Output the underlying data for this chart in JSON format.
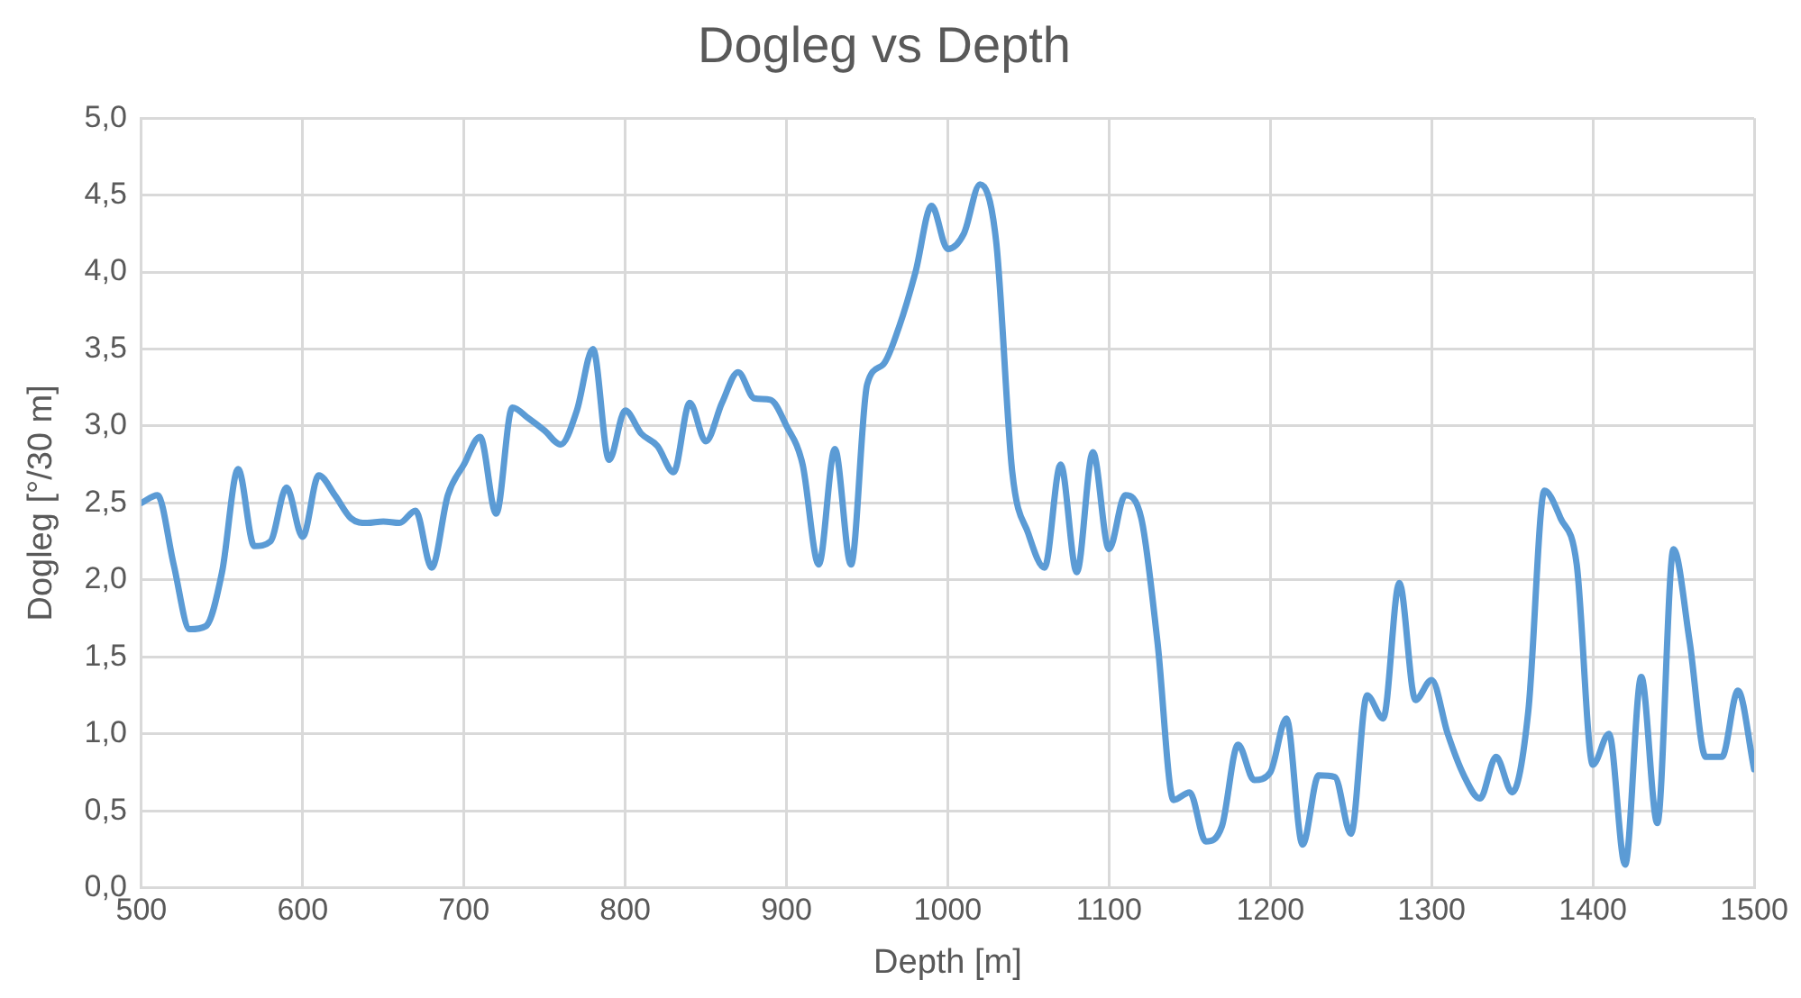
{
  "chart_data": {
    "type": "line",
    "title": "Dogleg vs Depth",
    "xlabel": "Depth [m]",
    "ylabel": "Dogleg [°/30 m]",
    "x": [
      500,
      510,
      520,
      530,
      540,
      550,
      560,
      570,
      580,
      590,
      600,
      610,
      620,
      630,
      640,
      650,
      660,
      670,
      680,
      690,
      700,
      710,
      720,
      730,
      740,
      750,
      760,
      770,
      780,
      790,
      800,
      810,
      820,
      830,
      840,
      850,
      860,
      870,
      880,
      890,
      900,
      910,
      920,
      930,
      940,
      950,
      960,
      970,
      980,
      990,
      1000,
      1010,
      1020,
      1030,
      1040,
      1050,
      1060,
      1070,
      1080,
      1090,
      1100,
      1110,
      1120,
      1130,
      1140,
      1150,
      1160,
      1170,
      1180,
      1190,
      1200,
      1210,
      1220,
      1230,
      1240,
      1250,
      1260,
      1270,
      1280,
      1290,
      1300,
      1310,
      1320,
      1330,
      1340,
      1350,
      1360,
      1370,
      1380,
      1390,
      1400,
      1410,
      1420,
      1430,
      1440,
      1450,
      1460,
      1470,
      1480,
      1490,
      1500
    ],
    "series": [
      {
        "color": "#5b9bd5",
        "values": [
          2.5,
          2.55,
          2.1,
          1.68,
          1.7,
          2.05,
          2.72,
          2.22,
          2.25,
          2.6,
          2.28,
          2.68,
          2.55,
          2.4,
          2.37,
          2.38,
          2.37,
          2.45,
          2.08,
          2.55,
          2.75,
          2.93,
          2.43,
          3.12,
          3.05,
          2.97,
          2.88,
          3.1,
          3.5,
          2.78,
          3.1,
          2.95,
          2.87,
          2.7,
          3.15,
          2.9,
          3.15,
          3.35,
          3.18,
          3.17,
          3.0,
          2.75,
          2.1,
          2.85,
          2.1,
          3.27,
          3.4,
          3.65,
          4.0,
          4.43,
          4.15,
          4.25,
          4.57,
          4.2,
          2.7,
          2.3,
          2.08,
          2.75,
          2.05,
          2.83,
          2.2,
          2.55,
          2.4,
          1.6,
          0.57,
          0.62,
          0.3,
          0.4,
          0.93,
          0.7,
          0.75,
          1.1,
          0.28,
          0.73,
          0.72,
          0.35,
          1.25,
          1.1,
          1.98,
          1.22,
          1.35,
          1.0,
          0.73,
          0.58,
          0.85,
          0.62,
          1.15,
          2.58,
          2.4,
          2.1,
          0.8,
          1.0,
          0.15,
          1.37,
          0.42,
          2.2,
          1.6,
          0.85,
          0.85,
          1.28,
          0.77
        ]
      }
    ],
    "xlim": [
      500,
      1500
    ],
    "xticks": [
      500,
      600,
      700,
      800,
      900,
      1000,
      1100,
      1200,
      1300,
      1400,
      1500
    ],
    "ylim": [
      0,
      5
    ],
    "yticks": [
      {
        "value": 0,
        "label": "0,0"
      },
      {
        "value": 0.5,
        "label": "0,5"
      },
      {
        "value": 1,
        "label": "1,0"
      },
      {
        "value": 1.5,
        "label": "1,5"
      },
      {
        "value": 2,
        "label": "2,0"
      },
      {
        "value": 2.5,
        "label": "2,5"
      },
      {
        "value": 3,
        "label": "3,0"
      },
      {
        "value": 3.5,
        "label": "3,5"
      },
      {
        "value": 4,
        "label": "4,0"
      },
      {
        "value": 4.5,
        "label": "4,5"
      },
      {
        "value": 5,
        "label": "5,0"
      }
    ],
    "grid": true,
    "marker": "none",
    "line_style": "solid",
    "legend": false
  }
}
